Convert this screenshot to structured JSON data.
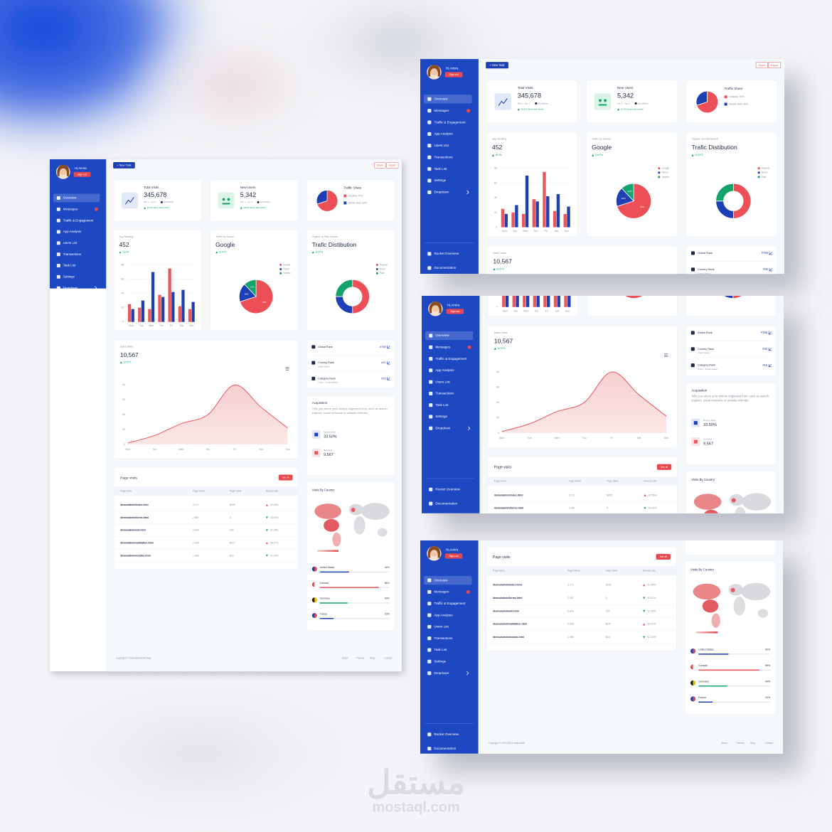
{
  "user": {
    "greeting": "Hi,Amira",
    "sign_out": "Sign out"
  },
  "menu": [
    "Overview",
    "Messages",
    "Traffic & Engagement",
    "App Analysis",
    "Users List",
    "Transactions",
    "Task List",
    "Settings",
    "Dropdown"
  ],
  "menu_bottom": [
    "Rocket Overview",
    "Documentation"
  ],
  "toolbar": {
    "new_task": "+ New Task",
    "share": "Share",
    "export": "Export"
  },
  "stats": [
    {
      "title": "Total Visits",
      "value": "345,678",
      "period": "Feb 1 - Apr 1",
      "region": "WorldWide",
      "change": "18.2% Since last month"
    },
    {
      "title": "New Users",
      "value": "5,342",
      "period": "Feb 1 - Apr 1",
      "region": "WorldWide",
      "change": "18.2% Since last month"
    }
  ],
  "traffic_share": {
    "title": "Traffic Share",
    "items": [
      "Desktop 70%",
      "Mobile Web 30%"
    ],
    "chart": {
      "type": "pie",
      "values": [
        70,
        30
      ],
      "colors": [
        "#ec4f55",
        "#1d3fb4"
      ]
    }
  },
  "app_ranking": {
    "label": "App Ranking",
    "value": "452",
    "change": "18.2%",
    "chart": {
      "type": "bar",
      "categories": [
        "Mon",
        "Tue",
        "Wed",
        "Thu",
        "Fri",
        "Sat",
        "Sun"
      ],
      "series": [
        {
          "color": "#e8585e",
          "values": [
            25,
            20,
            18,
            38,
            75,
            22,
            18
          ]
        },
        {
          "color": "#1d3fb4",
          "values": [
            18,
            30,
            70,
            35,
            42,
            45,
            28
          ]
        }
      ],
      "ylim": [
        0,
        80
      ],
      "yticks": [
        0,
        20,
        40,
        60,
        80
      ]
    }
  },
  "traffic_source": {
    "label": "Traffic by Source",
    "value": "Google",
    "change": "10.57%",
    "chart": {
      "type": "pie",
      "categories": [
        "Google",
        "Yahoo",
        "Yandex"
      ],
      "values": [
        70,
        18,
        12
      ],
      "value_labels": [
        "70%",
        "18%",
        "12%"
      ],
      "colors": [
        "#ec4f55",
        "#1d3fb4",
        "#13a36b"
      ]
    }
  },
  "organic": {
    "label": "Organic vs Paid Search",
    "value": "Trafic Distibution",
    "change": "10.57%",
    "chart": {
      "type": "donut",
      "categories": [
        "Organic",
        "Direct",
        "Paid"
      ],
      "values": [
        50,
        25,
        25
      ],
      "colors": [
        "#ec4f55",
        "#1d3fb4",
        "#13a36b"
      ]
    }
  },
  "sales": {
    "label": "Sales Value",
    "value": "10,567",
    "change": "10.57%",
    "chart": {
      "type": "line",
      "categories": [
        "Mon",
        "Tue",
        "Wed",
        "Thu",
        "Fri",
        "Sat",
        "Sun"
      ],
      "values": [
        2,
        12,
        28,
        40,
        80,
        50,
        22
      ],
      "color": "#e8585e",
      "ylim": [
        0,
        90
      ],
      "yticks": [
        0,
        20,
        40,
        60,
        80
      ]
    }
  },
  "ranks": [
    {
      "label": "Global Rank",
      "value": "#755"
    },
    {
      "label": "Country Rank",
      "sub": "United States ↑",
      "value": "#32"
    },
    {
      "label": "Category Rank",
      "sub": "Travel > Accomodation",
      "value": "#16"
    }
  ],
  "acquisition": {
    "title": "Acquisition",
    "text": "Tells you where your visitors originated from, such as search engines, social networks or website referrals.",
    "metrics": [
      {
        "label": "Bounce Rate",
        "value": "33.50%"
      },
      {
        "label": "Sessions",
        "value": "9,567"
      }
    ]
  },
  "page_visits": {
    "title": "Page visits",
    "button": "See all",
    "columns": [
      "Page name",
      "Page Views",
      "Page Value",
      "Bounce rate"
    ],
    "rows": [
      [
        "/demo/admin/index.html",
        "3,171",
        "$205",
        "42.55%"
      ],
      [
        "/demo/admin/forms.html",
        "2,987",
        "0",
        "43.52%"
      ],
      [
        "/demo/admin/util.html",
        "2,844",
        "294",
        "32.35%"
      ],
      [
        "/demo/admin/validation.html",
        "2,050",
        "$147",
        "50.87%"
      ],
      [
        "/demo/admin/modals.html",
        "1,483",
        "$19",
        "32.24%"
      ]
    ],
    "trends": [
      "up",
      "down",
      "down",
      "up",
      "down"
    ]
  },
  "countries": {
    "title": "Visits By Country",
    "items": [
      {
        "name": "United States",
        "label": "42%",
        "value": 42,
        "color": "#1d3fb4"
      },
      {
        "name": "Canada",
        "label": "85%",
        "value": 85,
        "color": "#e8585e"
      },
      {
        "name": "Germany",
        "label": "40%",
        "value": 40,
        "color": "#13a36b"
      },
      {
        "name": "France",
        "label": "20%",
        "value": 20,
        "color": "#1d3fb4"
      }
    ]
  },
  "footer": {
    "copyright": "Copyright © 2019-2023 Amira Alaa",
    "links": [
      "About",
      "Themes",
      "Blog",
      "Contact"
    ]
  },
  "watermark": {
    "arabic": "مستقل",
    "latin": "mostaql.com"
  }
}
